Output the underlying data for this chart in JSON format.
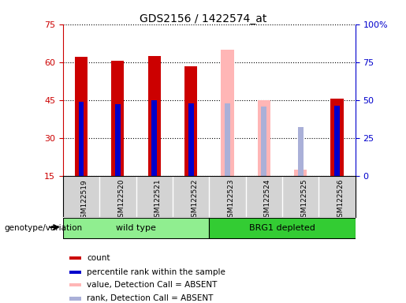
{
  "title": "GDS2156 / 1422574_at",
  "samples": [
    "GSM122519",
    "GSM122520",
    "GSM122521",
    "GSM122522",
    "GSM122523",
    "GSM122524",
    "GSM122525",
    "GSM122526"
  ],
  "count_values": [
    62,
    60.5,
    62.5,
    58.5,
    null,
    null,
    null,
    45.5
  ],
  "rank_values": [
    49,
    47,
    50,
    48,
    null,
    null,
    null,
    46
  ],
  "absent_value_values": [
    null,
    null,
    null,
    null,
    65,
    45,
    17.5,
    null
  ],
  "absent_rank_values": [
    null,
    null,
    null,
    null,
    48,
    45.5,
    32,
    null
  ],
  "ylim_left": [
    15,
    75
  ],
  "ylim_right": [
    0,
    100
  ],
  "yticks_left": [
    15,
    30,
    45,
    60,
    75
  ],
  "yticks_right": [
    0,
    25,
    50,
    75,
    100
  ],
  "count_color": "#cc0000",
  "rank_color": "#0000cc",
  "absent_value_color": "#ffb6b6",
  "absent_rank_color": "#aab0d8",
  "genotype_label": "genotype/variation",
  "wild_type_color": "#90ee90",
  "brg1_color": "#33cc33",
  "legend_items": [
    {
      "color": "#cc0000",
      "label": "count"
    },
    {
      "color": "#0000cc",
      "label": "percentile rank within the sample"
    },
    {
      "color": "#ffb6b6",
      "label": "value, Detection Call = ABSENT"
    },
    {
      "color": "#aab0d8",
      "label": "rank, Detection Call = ABSENT"
    }
  ],
  "subplot_bg": "#d3d3d3",
  "plot_bg": "#ffffff"
}
